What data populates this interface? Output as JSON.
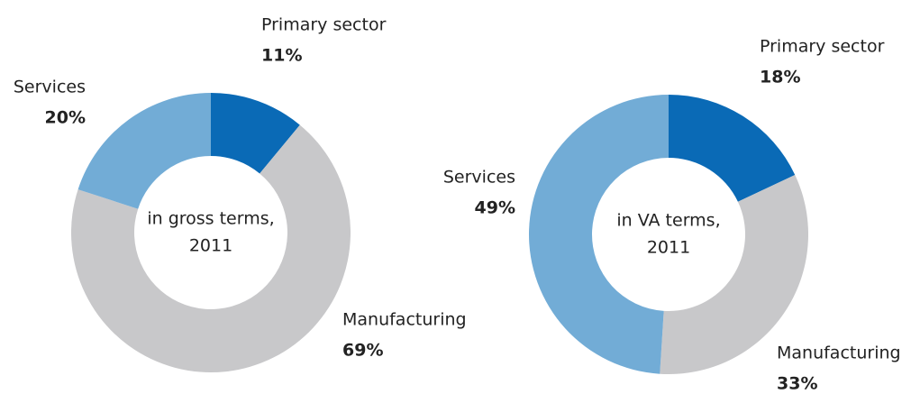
{
  "chart_data": [
    {
      "type": "donut",
      "center_label": [
        "in gross terms,",
        "2011"
      ],
      "categories": [
        "Primary sector",
        "Manufacturing",
        "Services"
      ],
      "values": [
        11,
        69,
        20
      ],
      "value_labels": [
        "11%",
        "69%",
        "20%"
      ],
      "colors": [
        "#0a6ab6",
        "#c8c8ca",
        "#72acd6"
      ]
    },
    {
      "type": "donut",
      "center_label": [
        "in VA terms,",
        "2011"
      ],
      "categories": [
        "Primary sector",
        "Manufacturing",
        "Services"
      ],
      "values": [
        18,
        33,
        49
      ],
      "value_labels": [
        "18%",
        "33%",
        "49%"
      ],
      "colors": [
        "#0a6ab6",
        "#c8c8ca",
        "#72acd6"
      ]
    }
  ]
}
